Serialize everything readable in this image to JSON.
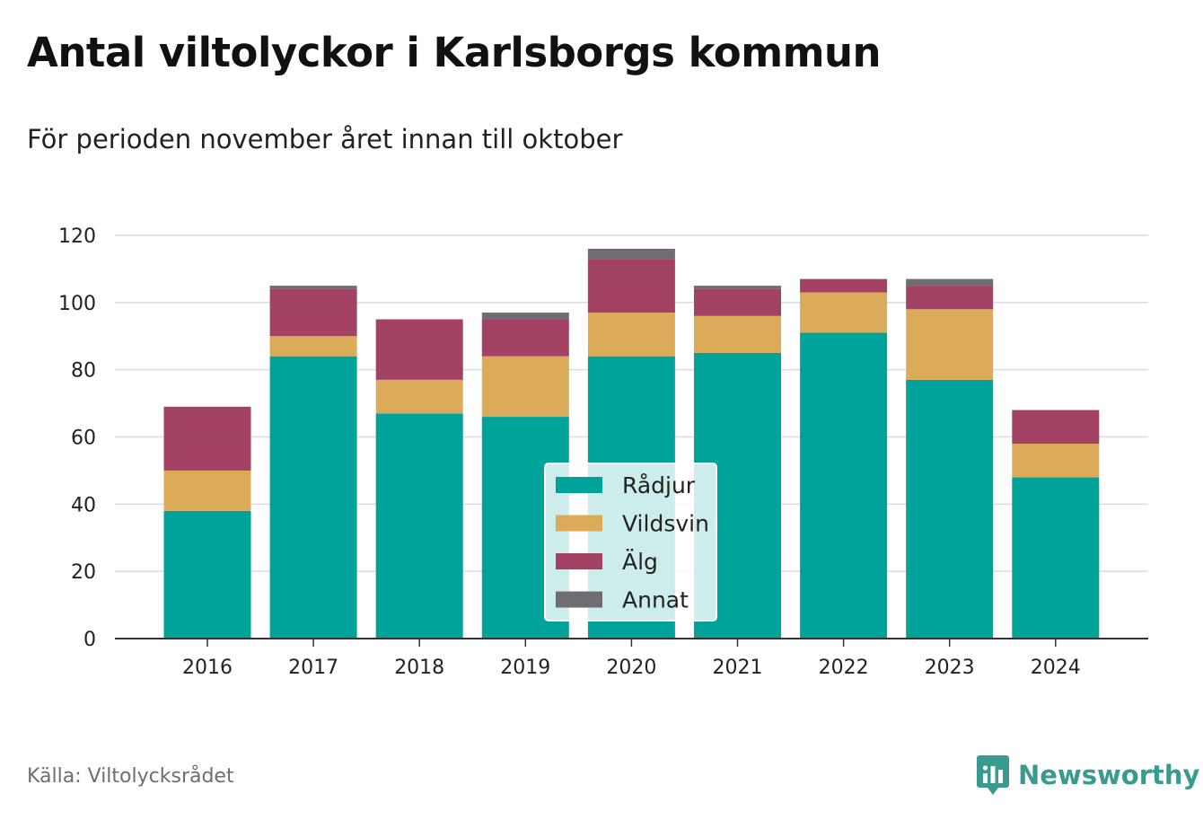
{
  "title": "Antal viltolyckor i Karlsborgs kommun",
  "subtitle": "För perioden november året innan till oktober",
  "source": "Källa: Viltolycksrådet",
  "brand": {
    "name": "Newsworthy",
    "icon": "newsworthy-logo-icon",
    "color": "#3a9a8f"
  },
  "chart_data": {
    "type": "bar",
    "stacked": true,
    "categories": [
      "2016",
      "2017",
      "2018",
      "2019",
      "2020",
      "2021",
      "2022",
      "2023",
      "2024"
    ],
    "series": [
      {
        "name": "Rådjur",
        "color": "#00a399",
        "values": [
          38,
          84,
          67,
          66,
          84,
          85,
          91,
          77,
          48
        ]
      },
      {
        "name": "Vildsvin",
        "color": "#dbab5a",
        "values": [
          12,
          6,
          10,
          18,
          13,
          11,
          12,
          21,
          10
        ]
      },
      {
        "name": "Älg",
        "color": "#a44266",
        "values": [
          19,
          14,
          18,
          11,
          16,
          8,
          4,
          7,
          10
        ]
      },
      {
        "name": "Annat",
        "color": "#6f6d73",
        "values": [
          0,
          1,
          0,
          2,
          3,
          1,
          0,
          2,
          0
        ]
      }
    ],
    "y_ticks": [
      0,
      20,
      40,
      60,
      80,
      100,
      120
    ],
    "ylim": [
      0,
      120
    ],
    "grid": true,
    "legend_position": "center-bottom"
  }
}
